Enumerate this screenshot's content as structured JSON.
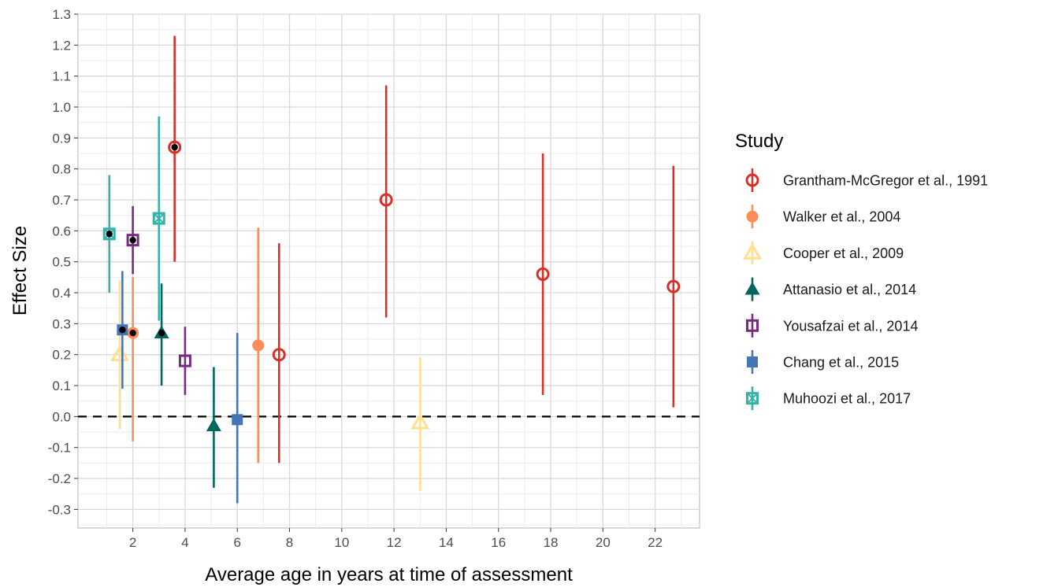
{
  "chart_data": {
    "type": "scatter",
    "subtype": "point-range (error bars)",
    "title": "",
    "xlabel": "Average age in years at time of assessment",
    "ylabel": "Effect Size",
    "xlim": [
      -0.1,
      23.7
    ],
    "ylim": [
      -0.36,
      1.3
    ],
    "x_ticks": [
      2,
      4,
      6,
      8,
      10,
      12,
      14,
      16,
      18,
      20,
      22
    ],
    "y_ticks": [
      -0.3,
      -0.2,
      -0.1,
      0.0,
      0.1,
      0.2,
      0.3,
      0.4,
      0.5,
      0.6,
      0.7,
      0.8,
      0.9,
      1.0,
      1.1,
      1.2,
      1.3
    ],
    "reference_line": {
      "y": 0.0,
      "style": "dashed"
    },
    "grid": true,
    "legend": {
      "title": "Study",
      "position": "right"
    },
    "series": [
      {
        "name": "Grantham-McGregor et al., 1991",
        "color": "#d73027",
        "shape": "open-circle",
        "points": [
          {
            "x": 3.6,
            "y": 0.87,
            "lo": 0.5,
            "hi": 1.23,
            "highlight": true
          },
          {
            "x": 7.6,
            "y": 0.2,
            "lo": -0.15,
            "hi": 0.56
          },
          {
            "x": 11.7,
            "y": 0.7,
            "lo": 0.32,
            "hi": 1.07
          },
          {
            "x": 17.7,
            "y": 0.46,
            "lo": 0.07,
            "hi": 0.85
          },
          {
            "x": 22.7,
            "y": 0.42,
            "lo": 0.03,
            "hi": 0.81
          }
        ]
      },
      {
        "name": "Walker et al., 2004",
        "color": "#fc8d59",
        "shape": "filled-circle",
        "points": [
          {
            "x": 2.0,
            "y": 0.27,
            "lo": -0.08,
            "hi": 0.45,
            "highlight": true
          },
          {
            "x": 6.8,
            "y": 0.23,
            "lo": -0.15,
            "hi": 0.61
          }
        ]
      },
      {
        "name": "Cooper et al., 2009",
        "color": "#fee090",
        "shape": "open-triangle",
        "points": [
          {
            "x": 1.5,
            "y": 0.2,
            "lo": -0.04,
            "hi": 0.44
          },
          {
            "x": 13.0,
            "y": -0.02,
            "lo": -0.24,
            "hi": 0.19
          }
        ]
      },
      {
        "name": "Attanasio et al., 2014",
        "color": "#01665e",
        "shape": "filled-triangle",
        "points": [
          {
            "x": 3.1,
            "y": 0.27,
            "lo": 0.1,
            "hi": 0.43,
            "highlight": true
          },
          {
            "x": 5.1,
            "y": -0.03,
            "lo": -0.23,
            "hi": 0.16
          }
        ]
      },
      {
        "name": "Yousafzai et al., 2014",
        "color": "#762a83",
        "shape": "open-square",
        "points": [
          {
            "x": 2.0,
            "y": 0.57,
            "lo": 0.46,
            "hi": 0.68,
            "highlight": true
          },
          {
            "x": 4.0,
            "y": 0.18,
            "lo": 0.07,
            "hi": 0.29
          }
        ]
      },
      {
        "name": "Chang et al., 2015",
        "color": "#4575b4",
        "shape": "filled-square",
        "points": [
          {
            "x": 1.6,
            "y": 0.28,
            "lo": 0.09,
            "hi": 0.47,
            "highlight": true
          },
          {
            "x": 6.0,
            "y": -0.01,
            "lo": -0.28,
            "hi": 0.27
          }
        ]
      },
      {
        "name": "Muhoozi et al., 2017",
        "color": "#35b3ab",
        "shape": "boxed-x",
        "points": [
          {
            "x": 1.1,
            "y": 0.59,
            "lo": 0.4,
            "hi": 0.78,
            "highlight": true
          },
          {
            "x": 3.0,
            "y": 0.64,
            "lo": 0.31,
            "hi": 0.97
          }
        ]
      }
    ]
  }
}
